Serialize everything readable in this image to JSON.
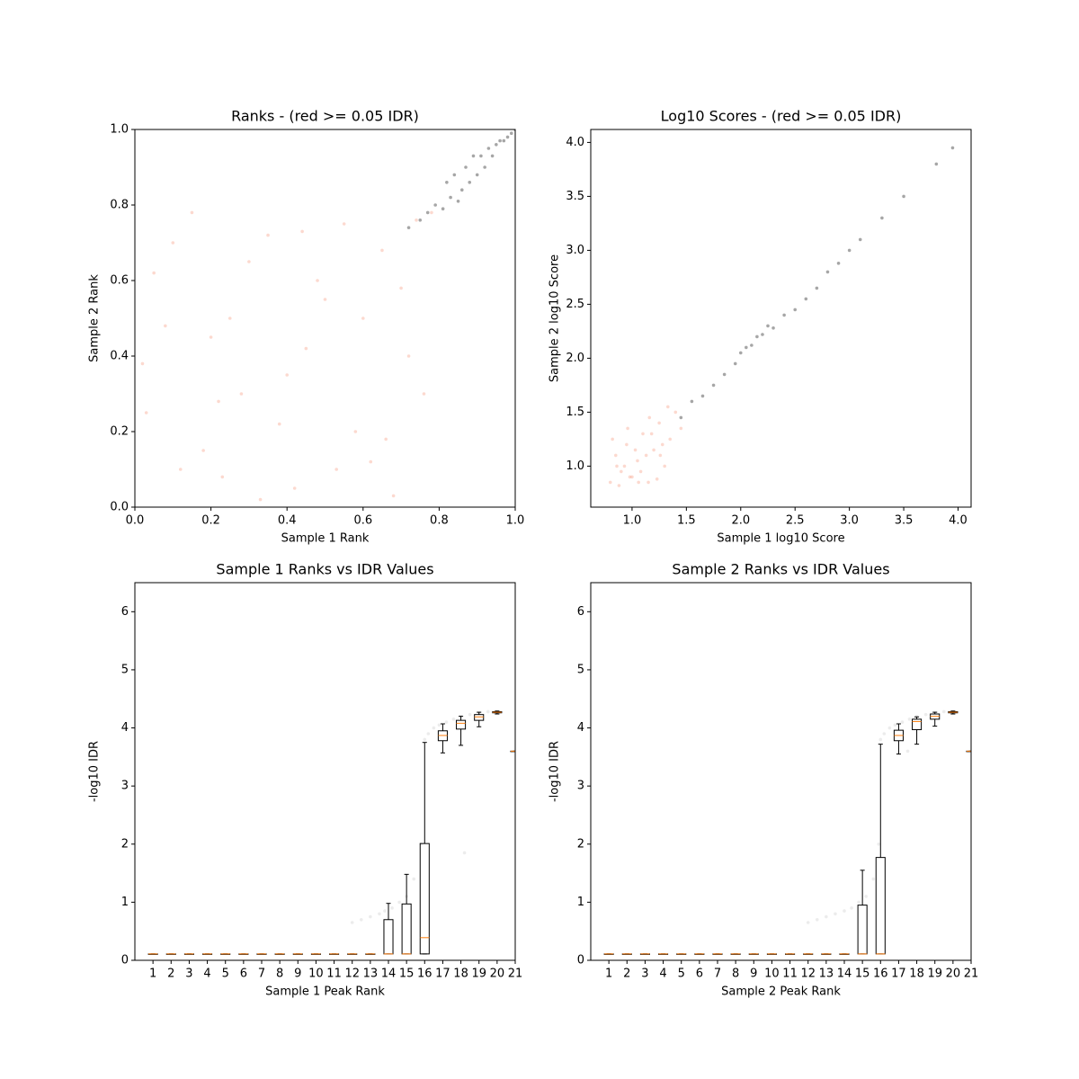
{
  "chart_data": [
    {
      "type": "scatter",
      "title": "Ranks - (red >= 0.05 IDR)",
      "x_label": "Sample 1 Rank",
      "y_label": "Sample 2 Rank",
      "xlim": [
        0,
        1
      ],
      "ylim": [
        0,
        1
      ],
      "xticks": [
        {
          "value": 0,
          "label": "0.0"
        },
        {
          "value": 0.2,
          "label": "0.2"
        },
        {
          "value": 0.4,
          "label": "0.4"
        },
        {
          "value": 0.6,
          "label": "0.6"
        },
        {
          "value": 0.8,
          "label": "0.8"
        },
        {
          "value": 1,
          "label": "1.0"
        }
      ],
      "yticks": [
        {
          "value": 0,
          "label": "0.0"
        },
        {
          "value": 0.2,
          "label": "0.2"
        },
        {
          "value": 0.4,
          "label": "0.4"
        },
        {
          "value": 0.6,
          "label": "0.6"
        },
        {
          "value": 0.8,
          "label": "0.8"
        },
        {
          "value": 1,
          "label": "1.0"
        }
      ],
      "series": [
        {
          "color": "#f4805f",
          "x": [
            0.05,
            0.12,
            0.2,
            0.28,
            0.35,
            0.42,
            0.5,
            0.58,
            0.65,
            0.72,
            0.78,
            0.03,
            0.1,
            0.18,
            0.25,
            0.33,
            0.4,
            0.48,
            0.55,
            0.62,
            0.7,
            0.76,
            0.08,
            0.15,
            0.23,
            0.3,
            0.38,
            0.45,
            0.53,
            0.6,
            0.68,
            0.74,
            0.02,
            0.22,
            0.44,
            0.66
          ],
          "y": [
            0.62,
            0.1,
            0.45,
            0.3,
            0.72,
            0.05,
            0.55,
            0.2,
            0.68,
            0.4,
            0.78,
            0.25,
            0.7,
            0.15,
            0.5,
            0.02,
            0.35,
            0.6,
            0.75,
            0.12,
            0.58,
            0.3,
            0.48,
            0.78,
            0.08,
            0.65,
            0.22,
            0.42,
            0.1,
            0.5,
            0.03,
            0.76,
            0.38,
            0.28,
            0.73,
            0.18
          ]
        },
        {
          "color": "#000000",
          "x": [
            0.72,
            0.75,
            0.77,
            0.79,
            0.81,
            0.83,
            0.84,
            0.86,
            0.87,
            0.88,
            0.9,
            0.91,
            0.92,
            0.93,
            0.94,
            0.95,
            0.96,
            0.97,
            0.98,
            0.99,
            1.0,
            0.85,
            0.89,
            0.82
          ],
          "y": [
            0.74,
            0.76,
            0.78,
            0.8,
            0.79,
            0.82,
            0.88,
            0.84,
            0.9,
            0.86,
            0.88,
            0.93,
            0.9,
            0.95,
            0.93,
            0.96,
            0.97,
            0.97,
            0.98,
            0.99,
            1.0,
            0.81,
            0.93,
            0.86
          ]
        }
      ]
    },
    {
      "type": "scatter",
      "title": "Log10 Scores - (red >= 0.05 IDR)",
      "x_label": "Sample 1 log10 Score",
      "y_label": "Sample 2 log10 Score",
      "xlim": [
        0.62,
        4.12
      ],
      "ylim": [
        0.62,
        4.12
      ],
      "xticks": [
        {
          "value": 1,
          "label": "1.0"
        },
        1.5,
        {
          "value": 2,
          "label": "2.0"
        },
        2.5,
        {
          "value": 3,
          "label": "3.0"
        },
        3.5,
        {
          "value": 4,
          "label": "4.0"
        }
      ],
      "yticks": [
        {
          "value": 1,
          "label": "1.0"
        },
        1.5,
        {
          "value": 2,
          "label": "2.0"
        },
        2.5,
        {
          "value": 3,
          "label": "3.0"
        },
        3.5,
        {
          "value": 4,
          "label": "4.0"
        }
      ],
      "series": [
        {
          "color": "#f4805f",
          "x": [
            0.8,
            0.85,
            0.9,
            0.95,
            1.0,
            1.05,
            1.1,
            1.15,
            1.2,
            1.25,
            1.3,
            1.35,
            1.4,
            1.45,
            0.82,
            0.88,
            0.93,
            0.98,
            1.03,
            1.08,
            1.13,
            1.18,
            1.23,
            1.28,
            1.33,
            0.86,
            0.96,
            1.06,
            1.16,
            1.26
          ],
          "y": [
            0.85,
            1.1,
            0.95,
            1.2,
            0.9,
            1.05,
            1.3,
            0.85,
            1.15,
            1.4,
            1.0,
            1.25,
            1.5,
            1.35,
            1.25,
            0.82,
            1.0,
            0.9,
            1.15,
            0.95,
            1.1,
            1.3,
            0.88,
            1.2,
            1.55,
            1.0,
            1.35,
            0.85,
            1.45,
            1.1
          ]
        },
        {
          "color": "#000000",
          "x": [
            1.45,
            1.55,
            1.65,
            1.75,
            1.85,
            1.95,
            2.0,
            2.05,
            2.1,
            2.15,
            2.2,
            2.25,
            2.3,
            2.4,
            2.5,
            2.6,
            2.7,
            2.8,
            2.9,
            3.0,
            3.1,
            3.3,
            3.5,
            3.8,
            3.95
          ],
          "y": [
            1.45,
            1.6,
            1.65,
            1.75,
            1.85,
            1.95,
            2.05,
            2.1,
            2.12,
            2.2,
            2.22,
            2.3,
            2.28,
            2.4,
            2.45,
            2.55,
            2.65,
            2.8,
            2.88,
            3.0,
            3.1,
            3.3,
            3.5,
            3.8,
            3.95
          ]
        }
      ]
    },
    {
      "type": "box",
      "title": "Sample 1 Ranks vs IDR Values",
      "x_label": "Sample 1 Peak Rank",
      "y_label": "-log10 IDR",
      "xlim": [
        0,
        21
      ],
      "ylim": [
        0,
        6.5
      ],
      "xticks": [
        1,
        2,
        3,
        4,
        5,
        6,
        7,
        8,
        9,
        10,
        11,
        12,
        13,
        14,
        15,
        16,
        17,
        18,
        19,
        20,
        21
      ],
      "yticks": [
        0,
        1,
        2,
        3,
        4,
        5,
        6
      ],
      "positions": [
        1,
        2,
        3,
        4,
        5,
        6,
        7,
        8,
        9,
        10,
        11,
        12,
        13,
        14,
        15,
        16,
        17,
        18,
        19,
        20,
        21
      ],
      "low": [
        0.11,
        0.11,
        0.11,
        0.11,
        0.11,
        0.11,
        0.11,
        0.11,
        0.11,
        0.11,
        0.11,
        0.11,
        0.11,
        0.11,
        0.11,
        0.11,
        3.57,
        3.7,
        4.02,
        4.24,
        3.6
      ],
      "q1": [
        0.11,
        0.11,
        0.11,
        0.11,
        0.11,
        0.11,
        0.11,
        0.11,
        0.11,
        0.11,
        0.11,
        0.11,
        0.11,
        0.11,
        0.11,
        0.11,
        3.78,
        3.98,
        4.13,
        4.26,
        3.6
      ],
      "median": [
        0.11,
        0.11,
        0.11,
        0.11,
        0.11,
        0.11,
        0.11,
        0.11,
        0.11,
        0.11,
        0.11,
        0.11,
        0.11,
        0.11,
        0.11,
        0.39,
        3.87,
        4.08,
        4.19,
        4.27,
        3.6
      ],
      "q3": [
        0.11,
        0.11,
        0.11,
        0.11,
        0.11,
        0.11,
        0.11,
        0.11,
        0.11,
        0.11,
        0.11,
        0.11,
        0.11,
        0.7,
        0.97,
        2.01,
        3.95,
        4.13,
        4.23,
        4.28,
        3.6
      ],
      "high": [
        0.11,
        0.11,
        0.11,
        0.11,
        0.11,
        0.11,
        0.11,
        0.11,
        0.11,
        0.11,
        0.11,
        0.11,
        0.11,
        0.98,
        1.48,
        3.75,
        4.07,
        4.2,
        4.27,
        4.29,
        3.6
      ],
      "median_color": "#ff7f0e",
      "points": {
        "color": "#808080",
        "x": [
          12,
          12.5,
          13,
          13.5,
          13.8,
          14.2,
          14.6,
          15,
          15.4,
          15.8,
          16,
          16.2,
          16.5,
          16.8,
          17.2,
          17.6,
          18,
          18.5,
          19,
          19.5,
          20,
          18.2
        ],
        "y": [
          0.65,
          0.7,
          0.75,
          0.8,
          0.85,
          0.9,
          1.0,
          1.1,
          1.4,
          2.0,
          3.8,
          3.9,
          4.0,
          4.05,
          4.1,
          4.15,
          4.2,
          4.23,
          4.26,
          4.28,
          4.29,
          1.85
        ]
      }
    },
    {
      "type": "box",
      "title": "Sample 2 Ranks vs IDR Values",
      "x_label": "Sample 2 Peak Rank",
      "y_label": "-log10 IDR",
      "xlim": [
        0,
        21
      ],
      "ylim": [
        0,
        6.5
      ],
      "xticks": [
        1,
        2,
        3,
        4,
        5,
        6,
        7,
        8,
        9,
        10,
        11,
        12,
        13,
        14,
        15,
        16,
        17,
        18,
        19,
        20,
        21
      ],
      "yticks": [
        0,
        1,
        2,
        3,
        4,
        5,
        6
      ],
      "positions": [
        1,
        2,
        3,
        4,
        5,
        6,
        7,
        8,
        9,
        10,
        11,
        12,
        13,
        14,
        15,
        16,
        17,
        18,
        19,
        20,
        21
      ],
      "low": [
        0.11,
        0.11,
        0.11,
        0.11,
        0.11,
        0.11,
        0.11,
        0.11,
        0.11,
        0.11,
        0.11,
        0.11,
        0.11,
        0.11,
        0.11,
        0.11,
        3.55,
        3.72,
        4.03,
        4.24,
        3.6
      ],
      "q1": [
        0.11,
        0.11,
        0.11,
        0.11,
        0.11,
        0.11,
        0.11,
        0.11,
        0.11,
        0.11,
        0.11,
        0.11,
        0.11,
        0.11,
        0.11,
        0.11,
        3.78,
        3.97,
        4.15,
        4.26,
        3.6
      ],
      "median": [
        0.11,
        0.11,
        0.11,
        0.11,
        0.11,
        0.11,
        0.11,
        0.11,
        0.11,
        0.11,
        0.11,
        0.11,
        0.11,
        0.11,
        0.11,
        0.11,
        3.87,
        4.11,
        4.2,
        4.27,
        3.6
      ],
      "q3": [
        0.11,
        0.11,
        0.11,
        0.11,
        0.11,
        0.11,
        0.11,
        0.11,
        0.11,
        0.11,
        0.11,
        0.11,
        0.11,
        0.11,
        0.95,
        1.77,
        3.96,
        4.15,
        4.24,
        4.28,
        3.6
      ],
      "high": [
        0.11,
        0.11,
        0.11,
        0.11,
        0.11,
        0.11,
        0.11,
        0.11,
        0.11,
        0.11,
        0.11,
        0.11,
        0.11,
        0.11,
        1.55,
        3.72,
        4.07,
        4.19,
        4.27,
        4.29,
        3.6
      ],
      "median_color": "#ff7f0e",
      "points": {
        "color": "#808080",
        "x": [
          12,
          12.5,
          13,
          13.5,
          14,
          14.4,
          14.8,
          15.2,
          15.6,
          15.9,
          16,
          16.2,
          16.5,
          16.8,
          17.2,
          17.6,
          18,
          18.5,
          19,
          19.5,
          20,
          17.5
        ],
        "y": [
          0.65,
          0.7,
          0.75,
          0.8,
          0.85,
          0.9,
          1.0,
          1.1,
          1.4,
          2.0,
          3.8,
          3.9,
          4.0,
          4.05,
          4.1,
          4.15,
          4.2,
          4.23,
          4.26,
          4.28,
          4.29,
          3.6
        ]
      }
    }
  ]
}
